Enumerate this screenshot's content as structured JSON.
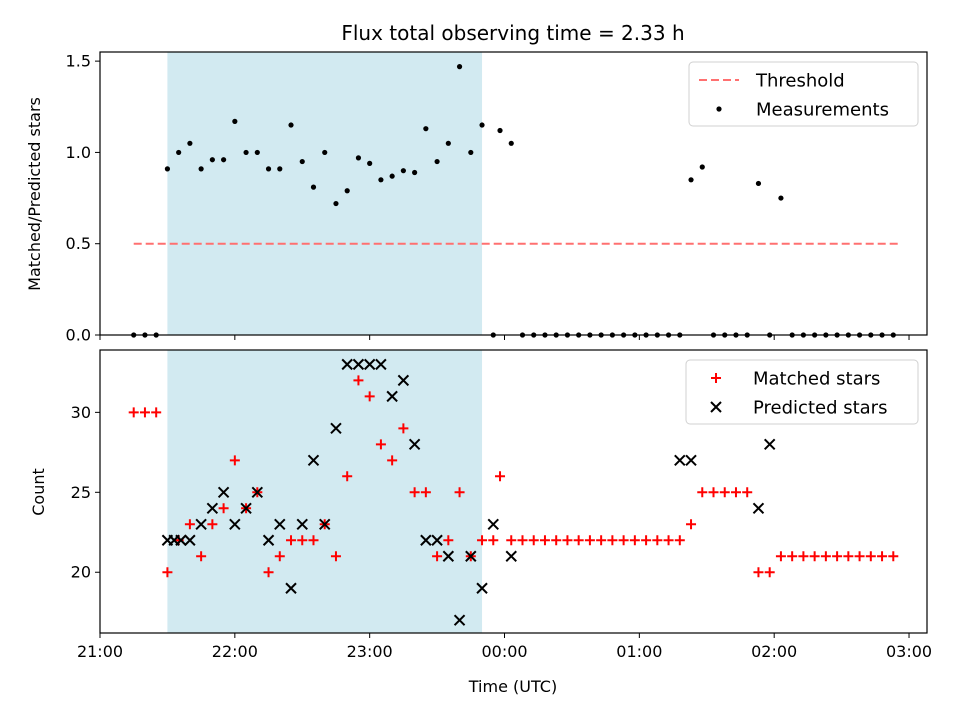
{
  "chart_data": [
    {
      "type": "scatter",
      "title": "Flux total observing time = 2.33 h",
      "xlabel": "",
      "ylabel": "Matched/Predicted stars",
      "ylim": [
        0,
        1.55
      ],
      "yticks": [
        0.0,
        0.5,
        1.0,
        1.5
      ],
      "ytick_labels": [
        "0.0",
        "0.5",
        "1.0",
        "1.5"
      ],
      "xlim": [
        "21:00",
        "03:08"
      ],
      "highlight_span": {
        "start": "21:30",
        "end": "23:50",
        "color": "#add8e6"
      },
      "legend_position": "upper right",
      "colors": {
        "threshold": "#ff7070",
        "measurements": "#000000",
        "span": "#add8e6"
      },
      "series": [
        {
          "name": "Threshold",
          "style": "dashed-line",
          "x": [
            "21:15",
            "02:55"
          ],
          "y": [
            0.5,
            0.5
          ]
        },
        {
          "name": "Measurements",
          "style": "dot",
          "x": [
            "21:15",
            "21:20",
            "21:25",
            "21:30",
            "21:35",
            "21:40",
            "21:45",
            "21:50",
            "21:55",
            "22:00",
            "22:05",
            "22:10",
            "22:15",
            "22:20",
            "22:25",
            "22:30",
            "22:35",
            "22:40",
            "22:45",
            "22:50",
            "22:55",
            "23:00",
            "23:05",
            "23:10",
            "23:15",
            "23:20",
            "23:25",
            "23:30",
            "23:35",
            "23:40",
            "23:45",
            "23:50",
            "23:55",
            "23:58",
            "00:03",
            "00:08",
            "00:13",
            "00:18",
            "00:23",
            "00:28",
            "00:33",
            "00:38",
            "00:43",
            "00:48",
            "00:53",
            "00:58",
            "01:03",
            "01:08",
            "01:13",
            "01:18",
            "01:23",
            "01:28",
            "01:33",
            "01:38",
            "01:43",
            "01:48",
            "01:53",
            "01:58",
            "02:03",
            "02:08",
            "02:13",
            "02:18",
            "02:23",
            "02:28",
            "02:33",
            "02:38",
            "02:43",
            "02:48",
            "02:53"
          ],
          "y": [
            0,
            0,
            0,
            0.91,
            1.0,
            1.05,
            0.91,
            0.96,
            0.96,
            1.17,
            1.0,
            1.0,
            0.91,
            0.91,
            1.15,
            0.95,
            0.81,
            1.0,
            0.72,
            0.79,
            0.97,
            0.94,
            0.85,
            0.87,
            0.9,
            0.89,
            1.13,
            0.95,
            1.05,
            1.47,
            1.0,
            1.15,
            0,
            1.12,
            1.05,
            0,
            0,
            0,
            0,
            0,
            0,
            0,
            0,
            0,
            0,
            0,
            0,
            0,
            0,
            0,
            0.85,
            0.92,
            0,
            0,
            0,
            0,
            0.83,
            0,
            0.75,
            0,
            0,
            0,
            0,
            0,
            0,
            0,
            0,
            0,
            0
          ]
        }
      ]
    },
    {
      "type": "scatter",
      "title": "",
      "xlabel": "Time (UTC)",
      "ylabel": "Count",
      "ylim": [
        16.2,
        33.9
      ],
      "yticks": [
        20,
        25,
        30
      ],
      "ytick_labels": [
        "20",
        "25",
        "30"
      ],
      "xlim": [
        "21:00",
        "03:08"
      ],
      "xtick_labels": [
        "21:00",
        "22:00",
        "23:00",
        "00:00",
        "01:00",
        "02:00",
        "03:00"
      ],
      "highlight_span": {
        "start": "21:30",
        "end": "23:50",
        "color": "#add8e6"
      },
      "legend_position": "upper right",
      "colors": {
        "matched": "#ff0000",
        "predicted": "#000000"
      },
      "series": [
        {
          "name": "Matched stars",
          "style": "plus",
          "x": [
            "21:15",
            "21:20",
            "21:25",
            "21:30",
            "21:35",
            "21:40",
            "21:45",
            "21:50",
            "21:55",
            "22:00",
            "22:05",
            "22:10",
            "22:15",
            "22:20",
            "22:25",
            "22:30",
            "22:35",
            "22:40",
            "22:45",
            "22:50",
            "22:55",
            "23:00",
            "23:05",
            "23:10",
            "23:15",
            "23:20",
            "23:25",
            "23:30",
            "23:35",
            "23:40",
            "23:45",
            "23:50",
            "23:55",
            "23:58",
            "00:03",
            "00:08",
            "00:13",
            "00:18",
            "00:23",
            "00:28",
            "00:33",
            "00:38",
            "00:43",
            "00:48",
            "00:53",
            "00:58",
            "01:03",
            "01:08",
            "01:13",
            "01:18",
            "01:23",
            "01:28",
            "01:33",
            "01:38",
            "01:43",
            "01:48",
            "01:53",
            "01:58",
            "02:03",
            "02:08",
            "02:13",
            "02:18",
            "02:23",
            "02:28",
            "02:33",
            "02:38",
            "02:43",
            "02:48",
            "02:53"
          ],
          "y": [
            30,
            30,
            30,
            20,
            22,
            23,
            21,
            23,
            24,
            27,
            24,
            25,
            20,
            21,
            22,
            22,
            22,
            23,
            21,
            26,
            32,
            31,
            28,
            27,
            29,
            25,
            25,
            21,
            22,
            25,
            21,
            22,
            22,
            26,
            22,
            22,
            22,
            22,
            22,
            22,
            22,
            22,
            22,
            22,
            22,
            22,
            22,
            22,
            22,
            22,
            23,
            25,
            25,
            25,
            25,
            25,
            20,
            20,
            21,
            21,
            21,
            21,
            21,
            21,
            21,
            21,
            21,
            21,
            21
          ]
        },
        {
          "name": "Predicted stars",
          "style": "x",
          "x": [
            "21:30",
            "21:33",
            "21:36",
            "21:40",
            "21:45",
            "21:50",
            "21:55",
            "22:00",
            "22:05",
            "22:10",
            "22:15",
            "22:20",
            "22:25",
            "22:30",
            "22:35",
            "22:40",
            "22:45",
            "22:50",
            "22:55",
            "23:00",
            "23:05",
            "23:10",
            "23:15",
            "23:20",
            "23:25",
            "23:30",
            "23:35",
            "23:40",
            "23:45",
            "23:50",
            "23:55",
            "00:03",
            "01:18",
            "01:23",
            "01:53",
            "01:58"
          ],
          "y": [
            22,
            22,
            22,
            22,
            23,
            24,
            25,
            23,
            24,
            25,
            22,
            23,
            19,
            23,
            27,
            23,
            29,
            33,
            33,
            33,
            33,
            31,
            32,
            28,
            22,
            22,
            21,
            17,
            21,
            19,
            23,
            21,
            27,
            27,
            24,
            28
          ]
        }
      ]
    }
  ]
}
